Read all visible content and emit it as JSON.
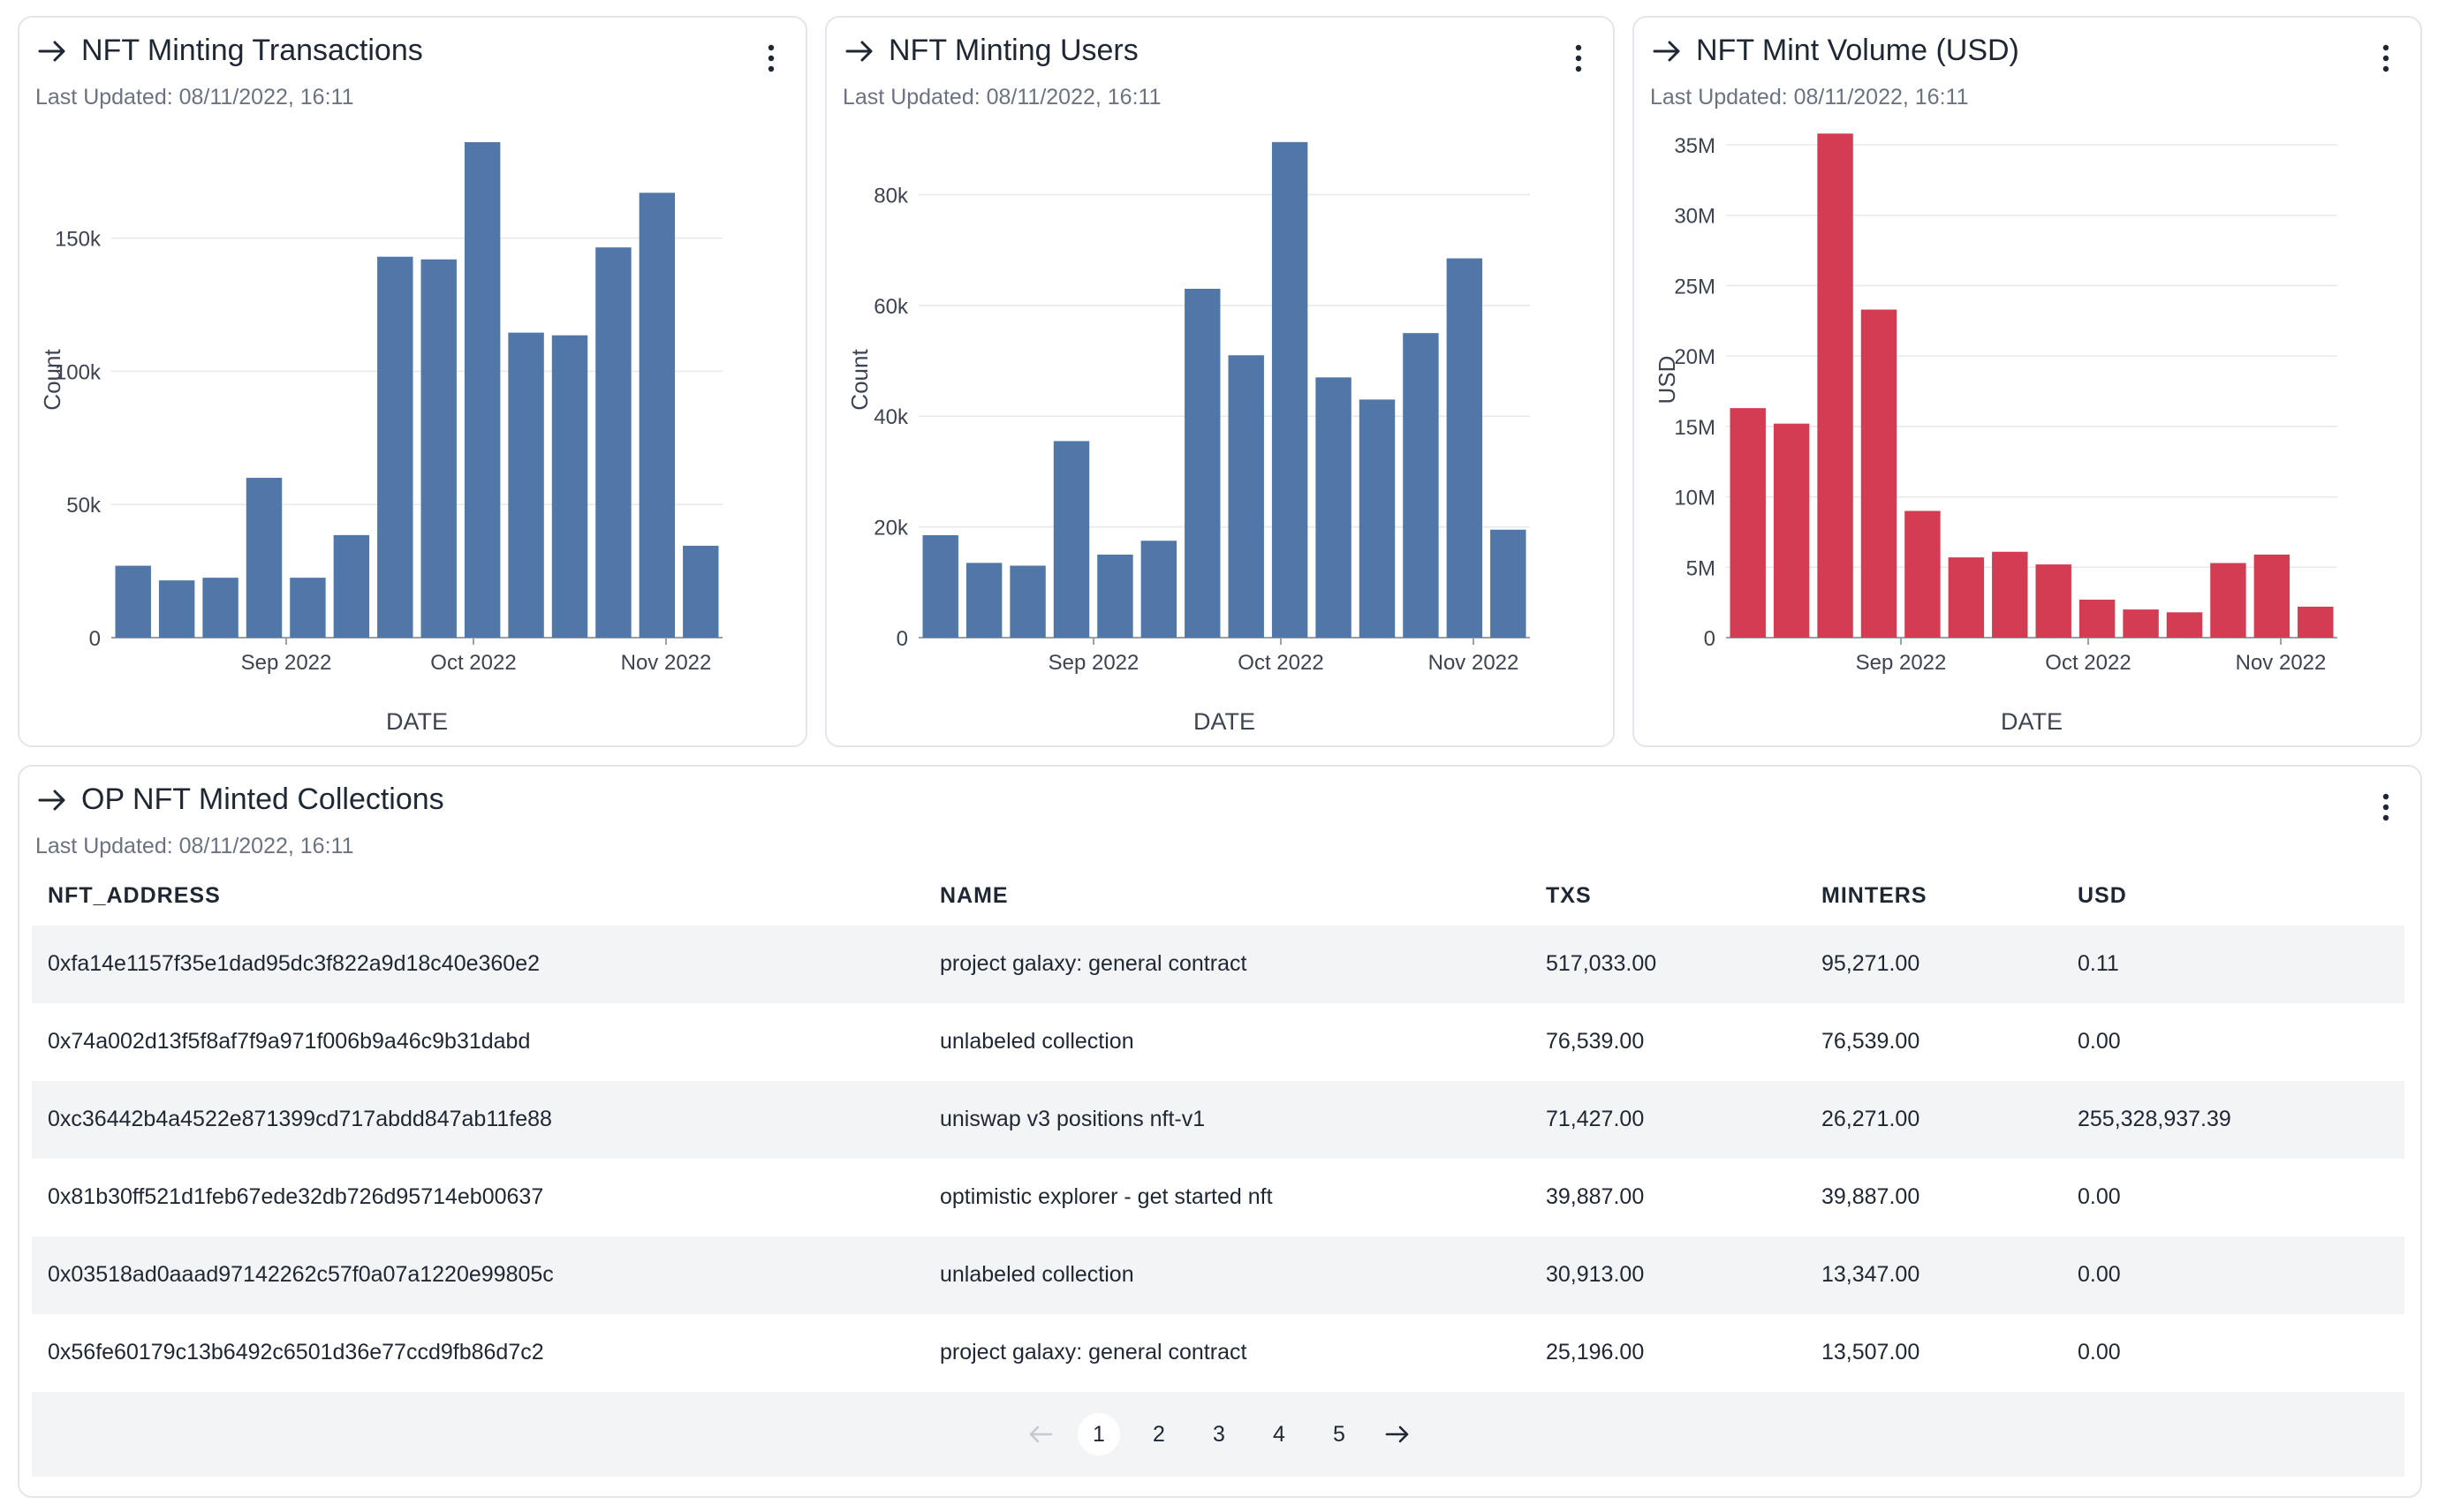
{
  "cards": [
    {
      "title": "NFT Minting Transactions",
      "updated": "Last Updated: 08/11/2022, 16:11",
      "color": "#5077a8"
    },
    {
      "title": "NFT Minting Users",
      "updated": "Last Updated: 08/11/2022, 16:11",
      "color": "#5077a8"
    },
    {
      "title": "NFT Mint Volume (USD)",
      "updated": "Last Updated: 08/11/2022, 16:11",
      "color": "#d33c52"
    }
  ],
  "chart_data": [
    {
      "type": "bar",
      "title": "NFT Minting Transactions",
      "xlabel": "DATE",
      "ylabel": "Count",
      "x_ticks": [
        "Sep 2022",
        "Oct 2022",
        "Nov 2022"
      ],
      "yticks": [
        0,
        50000,
        100000,
        150000
      ],
      "ytick_labels": [
        "0",
        "50k",
        "100k",
        "150k"
      ],
      "ylim": [
        0,
        185000
      ],
      "grid": true,
      "values": [
        27000,
        21500,
        22500,
        60000,
        22500,
        38500,
        143000,
        142000,
        186000,
        114500,
        113500,
        146500,
        167000,
        34500
      ]
    },
    {
      "type": "bar",
      "title": "NFT Minting Users",
      "xlabel": "DATE",
      "ylabel": "Count",
      "x_ticks": [
        "Sep 2022",
        "Oct 2022",
        "Nov 2022"
      ],
      "yticks": [
        0,
        20000,
        40000,
        60000,
        80000
      ],
      "ytick_labels": [
        "0",
        "20k",
        "40k",
        "60k",
        "80k"
      ],
      "ylim": [
        0,
        89000
      ],
      "grid": true,
      "values": [
        18500,
        13500,
        13000,
        35500,
        15000,
        17500,
        63000,
        51000,
        89500,
        47000,
        43000,
        55000,
        68500,
        19500
      ]
    },
    {
      "type": "bar",
      "title": "NFT Mint Volume (USD)",
      "xlabel": "DATE",
      "ylabel": "USD",
      "x_ticks": [
        "Sep 2022",
        "Oct 2022",
        "Nov 2022"
      ],
      "yticks": [
        0,
        5000000,
        10000000,
        15000000,
        20000000,
        25000000,
        30000000,
        35000000
      ],
      "ytick_labels": [
        "0",
        "5M",
        "10M",
        "15M",
        "20M",
        "25M",
        "30M",
        "35M"
      ],
      "ylim": [
        0,
        35000000
      ],
      "grid": true,
      "values": [
        16300000,
        15200000,
        35800000,
        23300000,
        9000000,
        5700000,
        6100000,
        5200000,
        2700000,
        2000000,
        1800000,
        5300000,
        5900000,
        2200000
      ]
    }
  ],
  "table": {
    "title": "OP NFT Minted Collections",
    "updated": "Last Updated: 08/11/2022, 16:11",
    "columns": [
      "NFT_ADDRESS",
      "NAME",
      "TXS",
      "MINTERS",
      "USD"
    ],
    "rows": [
      [
        "0xfa14e1157f35e1dad95dc3f822a9d18c40e360e2",
        "project galaxy: general contract",
        "517,033.00",
        "95,271.00",
        "0.11"
      ],
      [
        "0x74a002d13f5f8af7f9a971f006b9a46c9b31dabd",
        "unlabeled collection",
        "76,539.00",
        "76,539.00",
        "0.00"
      ],
      [
        "0xc36442b4a4522e871399cd717abdd847ab11fe88",
        "uniswap v3 positions nft-v1",
        "71,427.00",
        "26,271.00",
        "255,328,937.39"
      ],
      [
        "0x81b30ff521d1feb67ede32db726d95714eb00637",
        "optimistic explorer - get started nft",
        "39,887.00",
        "39,887.00",
        "0.00"
      ],
      [
        "0x03518ad0aaad97142262c57f0a07a1220e99805c",
        "unlabeled collection",
        "30,913.00",
        "13,347.00",
        "0.00"
      ],
      [
        "0x56fe60179c13b6492c6501d36e77ccd9fb86d7c2",
        "project galaxy: general contract",
        "25,196.00",
        "13,507.00",
        "0.00"
      ]
    ]
  },
  "pager": {
    "pages": [
      "1",
      "2",
      "3",
      "4",
      "5"
    ],
    "current": "1",
    "icons": {
      "prev": "arrow-left-icon",
      "next": "arrow-right-icon"
    }
  }
}
